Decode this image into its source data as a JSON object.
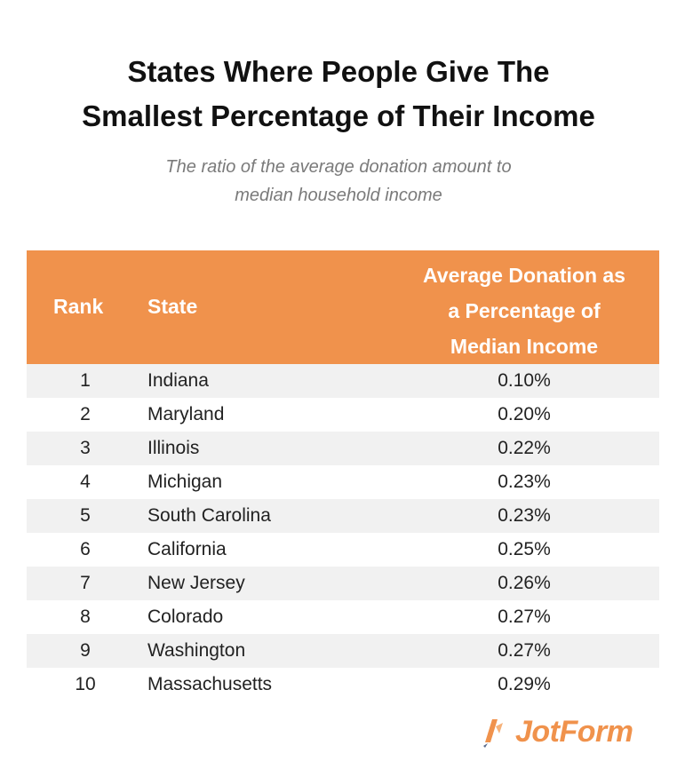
{
  "title_lines": [
    "States Where People Give The",
    "Smallest Percentage of Their Income"
  ],
  "subtitle_lines": [
    "The ratio of the average donation amount to",
    "median household income"
  ],
  "colors": {
    "header_bg": "#f0924c",
    "header_text": "#ffffff",
    "stripe": "#f1f1f1",
    "brand": "#f0924c"
  },
  "table": {
    "headers": {
      "rank": "Rank",
      "state": "State",
      "value_lines": [
        "Average Donation as",
        "a Percentage of",
        "Median Income"
      ]
    }
  },
  "chart_data": {
    "type": "table",
    "title": "States Where People Give The Smallest Percentage of Their Income",
    "subtitle": "The ratio of the average donation amount to median household income",
    "columns": [
      "Rank",
      "State",
      "Average Donation as a Percentage of Median Income"
    ],
    "rows": [
      {
        "rank": "1",
        "state": "Indiana",
        "value": "0.10%"
      },
      {
        "rank": "2",
        "state": "Maryland",
        "value": "0.20%"
      },
      {
        "rank": "3",
        "state": "Illinois",
        "value": "0.22%"
      },
      {
        "rank": "4",
        "state": "Michigan",
        "value": "0.23%"
      },
      {
        "rank": "5",
        "state": "South Carolina",
        "value": "0.23%"
      },
      {
        "rank": "6",
        "state": "California",
        "value": "0.25%"
      },
      {
        "rank": "7",
        "state": "New Jersey",
        "value": "0.26%"
      },
      {
        "rank": "8",
        "state": "Colorado",
        "value": "0.27%"
      },
      {
        "rank": "9",
        "state": "Washington",
        "value": "0.27%"
      },
      {
        "rank": "10",
        "state": "Massachusetts",
        "value": "0.29%"
      }
    ]
  },
  "brand": {
    "name": "JotForm",
    "icon": "jotform-logo-icon"
  }
}
